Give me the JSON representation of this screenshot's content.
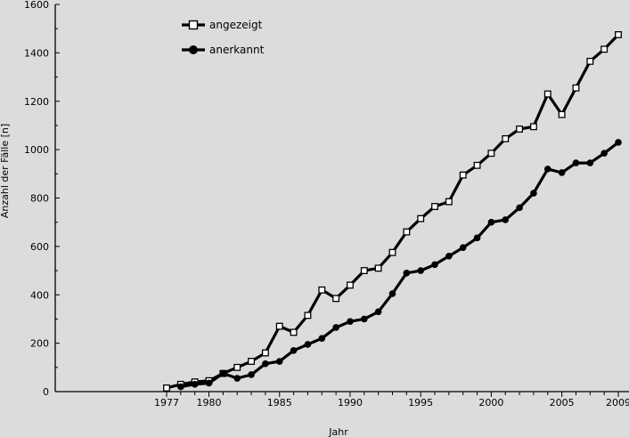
{
  "chart_data": {
    "type": "line",
    "xlabel": "Jahr",
    "ylabel": "Anzahl der Fälle [n]",
    "xlim": [
      1977,
      2009
    ],
    "ylim": [
      0,
      1600
    ],
    "x_ticks": [
      1977,
      1980,
      1985,
      1990,
      1995,
      2000,
      2005,
      2009
    ],
    "y_ticks": [
      0,
      200,
      400,
      600,
      800,
      1000,
      1200,
      1400,
      1600
    ],
    "grid": false,
    "legend_position": "top-left",
    "series": [
      {
        "name": "angezeigt",
        "marker": "open-square",
        "x": [
          1977,
          1978,
          1979,
          1980,
          1981,
          1982,
          1983,
          1984,
          1985,
          1986,
          1987,
          1988,
          1989,
          1990,
          1991,
          1992,
          1993,
          1994,
          1995,
          1996,
          1997,
          1998,
          1999,
          2000,
          2001,
          2002,
          2003,
          2004,
          2005,
          2006,
          2007,
          2008,
          2009
        ],
        "values": [
          15,
          30,
          40,
          45,
          75,
          100,
          125,
          160,
          270,
          245,
          315,
          420,
          385,
          440,
          500,
          510,
          575,
          660,
          715,
          765,
          785,
          895,
          935,
          985,
          1045,
          1085,
          1095,
          1230,
          1145,
          1255,
          1365,
          1415,
          1475
        ]
      },
      {
        "name": "anerkannt",
        "marker": "filled-circle",
        "x": [
          1978,
          1979,
          1980,
          1981,
          1982,
          1983,
          1984,
          1985,
          1986,
          1987,
          1988,
          1989,
          1990,
          1991,
          1992,
          1993,
          1994,
          1995,
          1996,
          1997,
          1998,
          1999,
          2000,
          2001,
          2002,
          2003,
          2004,
          2005,
          2006,
          2007,
          2008,
          2009
        ],
        "values": [
          20,
          30,
          35,
          75,
          55,
          70,
          115,
          125,
          170,
          195,
          220,
          265,
          290,
          300,
          330,
          405,
          490,
          500,
          525,
          560,
          595,
          635,
          700,
          710,
          760,
          820,
          920,
          905,
          945,
          945,
          985,
          1030
        ]
      }
    ]
  }
}
